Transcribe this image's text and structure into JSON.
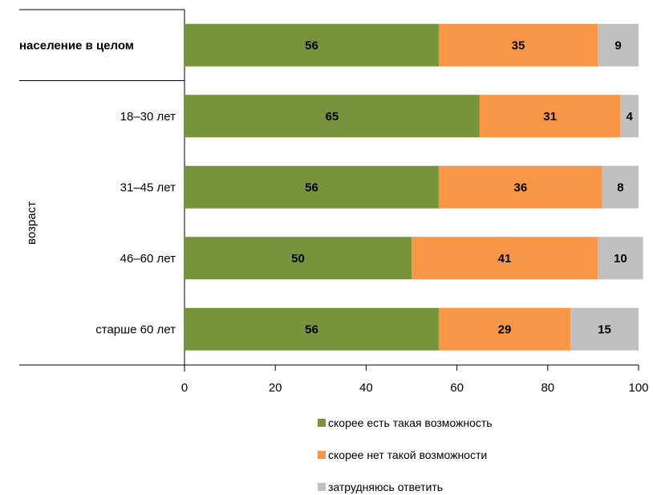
{
  "chart_data": {
    "type": "bar",
    "stacked": true,
    "orientation": "horizontal",
    "categories": [
      "население в целом",
      "18–30 лет",
      "31–45 лет",
      "46–60 лет",
      "старше 60 лет"
    ],
    "group_label": "возраст",
    "series": [
      {
        "name": "скорее есть такая возможность",
        "color": "#77933c",
        "values": [
          56,
          65,
          56,
          50,
          56
        ]
      },
      {
        "name": "скорее нет такой возможности",
        "color": "#f79646",
        "values": [
          35,
          31,
          36,
          41,
          29
        ]
      },
      {
        "name": "затрудняюсь ответить",
        "color": "#c0c0c0",
        "values": [
          9,
          4,
          8,
          10,
          15
        ]
      }
    ],
    "xlim": [
      0,
      100
    ],
    "xticks": [
      "0",
      "20",
      "40",
      "60",
      "80",
      "100"
    ],
    "legend_position": "bottom",
    "grid": false
  }
}
